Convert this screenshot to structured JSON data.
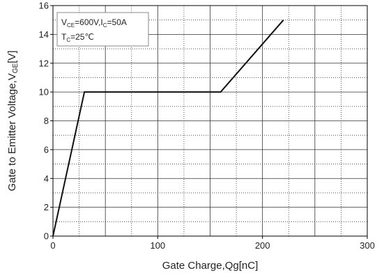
{
  "chart_data": {
    "type": "line",
    "xlabel": "Gate Charge,Qg[nC]",
    "ylabel": "Gate to Emitter Voltage,V<sub>GE</sub>[V]",
    "xlim": [
      0,
      300
    ],
    "ylim": [
      0,
      16
    ],
    "x_ticks": [
      0,
      100,
      200,
      300
    ],
    "y_ticks": [
      0,
      2,
      4,
      6,
      8,
      10,
      12,
      14,
      16
    ],
    "x_tick_labels": [
      "0",
      "100",
      "200",
      "300"
    ],
    "y_tick_labels": [
      "0",
      "2",
      "4",
      "6",
      "8",
      "10",
      "12",
      "14",
      "16"
    ],
    "grid": true,
    "grid_major_style": "solid",
    "grid_minor_style": "dotted",
    "series": [
      {
        "x": [
          0,
          30,
          160,
          220
        ],
        "y": [
          0,
          10,
          10,
          15
        ],
        "color": "#111111"
      }
    ],
    "annotation": {
      "line1": {
        "v_main": "V",
        "v_sub": "CE",
        "v_rest": "=600V,I",
        "i_sub": "C",
        "i_rest": "=50A"
      },
      "line2": {
        "t_main": "T",
        "t_sub": "C",
        "t_rest": "=25℃"
      }
    }
  }
}
